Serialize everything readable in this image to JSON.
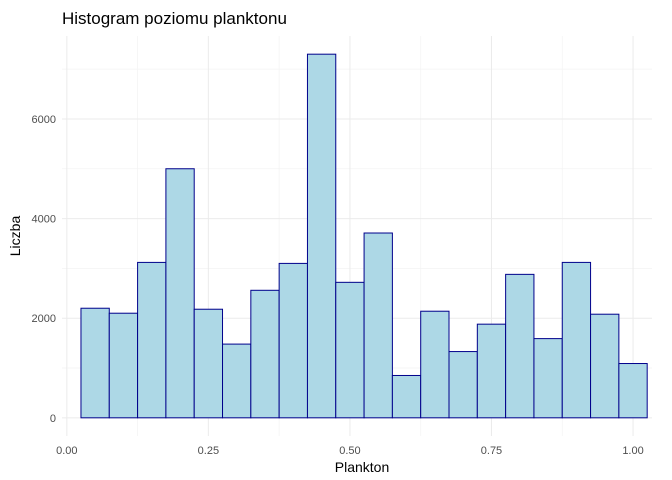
{
  "chart_data": {
    "type": "bar",
    "title": "Histogram poziomu planktonu",
    "xlabel": "Plankton",
    "ylabel": "Liczba",
    "bin_width": 0.05,
    "bin_centers": [
      0.05,
      0.1,
      0.15,
      0.2,
      0.25,
      0.3,
      0.35,
      0.4,
      0.45,
      0.5,
      0.55,
      0.6,
      0.65,
      0.7,
      0.75,
      0.8,
      0.85,
      0.9,
      0.95,
      1.0
    ],
    "values": [
      2200,
      2100,
      3120,
      5000,
      2180,
      1480,
      2560,
      3100,
      7300,
      2720,
      3710,
      850,
      2140,
      1330,
      1880,
      2880,
      1590,
      3120,
      2080,
      1090
    ],
    "xlim": [
      -0.0085,
      1.0335
    ],
    "ylim": [
      -365,
      7665
    ],
    "x_ticks": [
      0.0,
      0.25,
      0.5,
      0.75,
      1.0
    ],
    "x_tick_labels": [
      "0.00",
      "0.25",
      "0.50",
      "0.75",
      "1.00"
    ],
    "y_ticks": [
      0,
      2000,
      4000,
      6000
    ],
    "y_tick_labels": [
      "0",
      "2000",
      "4000",
      "6000"
    ],
    "grid": true,
    "colors": {
      "fill": "#add8e6",
      "outline": "#00008b"
    }
  }
}
